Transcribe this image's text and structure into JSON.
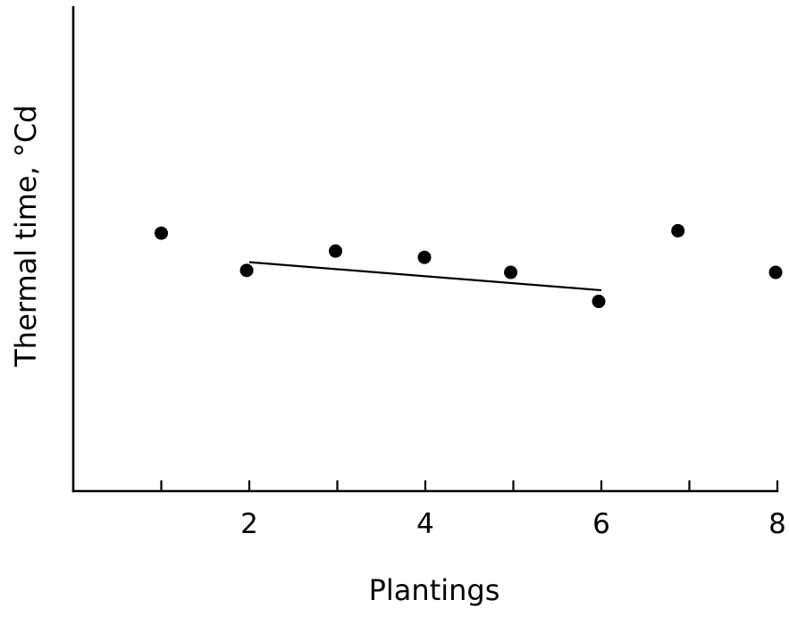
{
  "chart_data": {
    "type": "scatter",
    "xlabel": "Plantings",
    "ylabel": "Thermal   time,  °Cd",
    "xlim": [
      0,
      8
    ],
    "ylim": [
      0,
      10
    ],
    "xticks": [
      1,
      2,
      3,
      4,
      5,
      6,
      7,
      8
    ],
    "xtick_labels": [
      "",
      "2",
      "",
      "4",
      "",
      "6",
      "",
      "8"
    ],
    "y_tick_labels_shown": false,
    "grid": false,
    "legend": "none",
    "points": [
      {
        "x": 1.0,
        "y": 5.33
      },
      {
        "x": 1.97,
        "y": 4.56
      },
      {
        "x": 2.98,
        "y": 4.96
      },
      {
        "x": 3.99,
        "y": 4.83
      },
      {
        "x": 4.97,
        "y": 4.52
      },
      {
        "x": 5.97,
        "y": 3.92
      },
      {
        "x": 6.87,
        "y": 5.38
      },
      {
        "x": 7.98,
        "y": 4.52
      }
    ],
    "trend_line": {
      "x": [
        2.0,
        6.0
      ],
      "y": [
        4.73,
        4.15
      ]
    }
  }
}
